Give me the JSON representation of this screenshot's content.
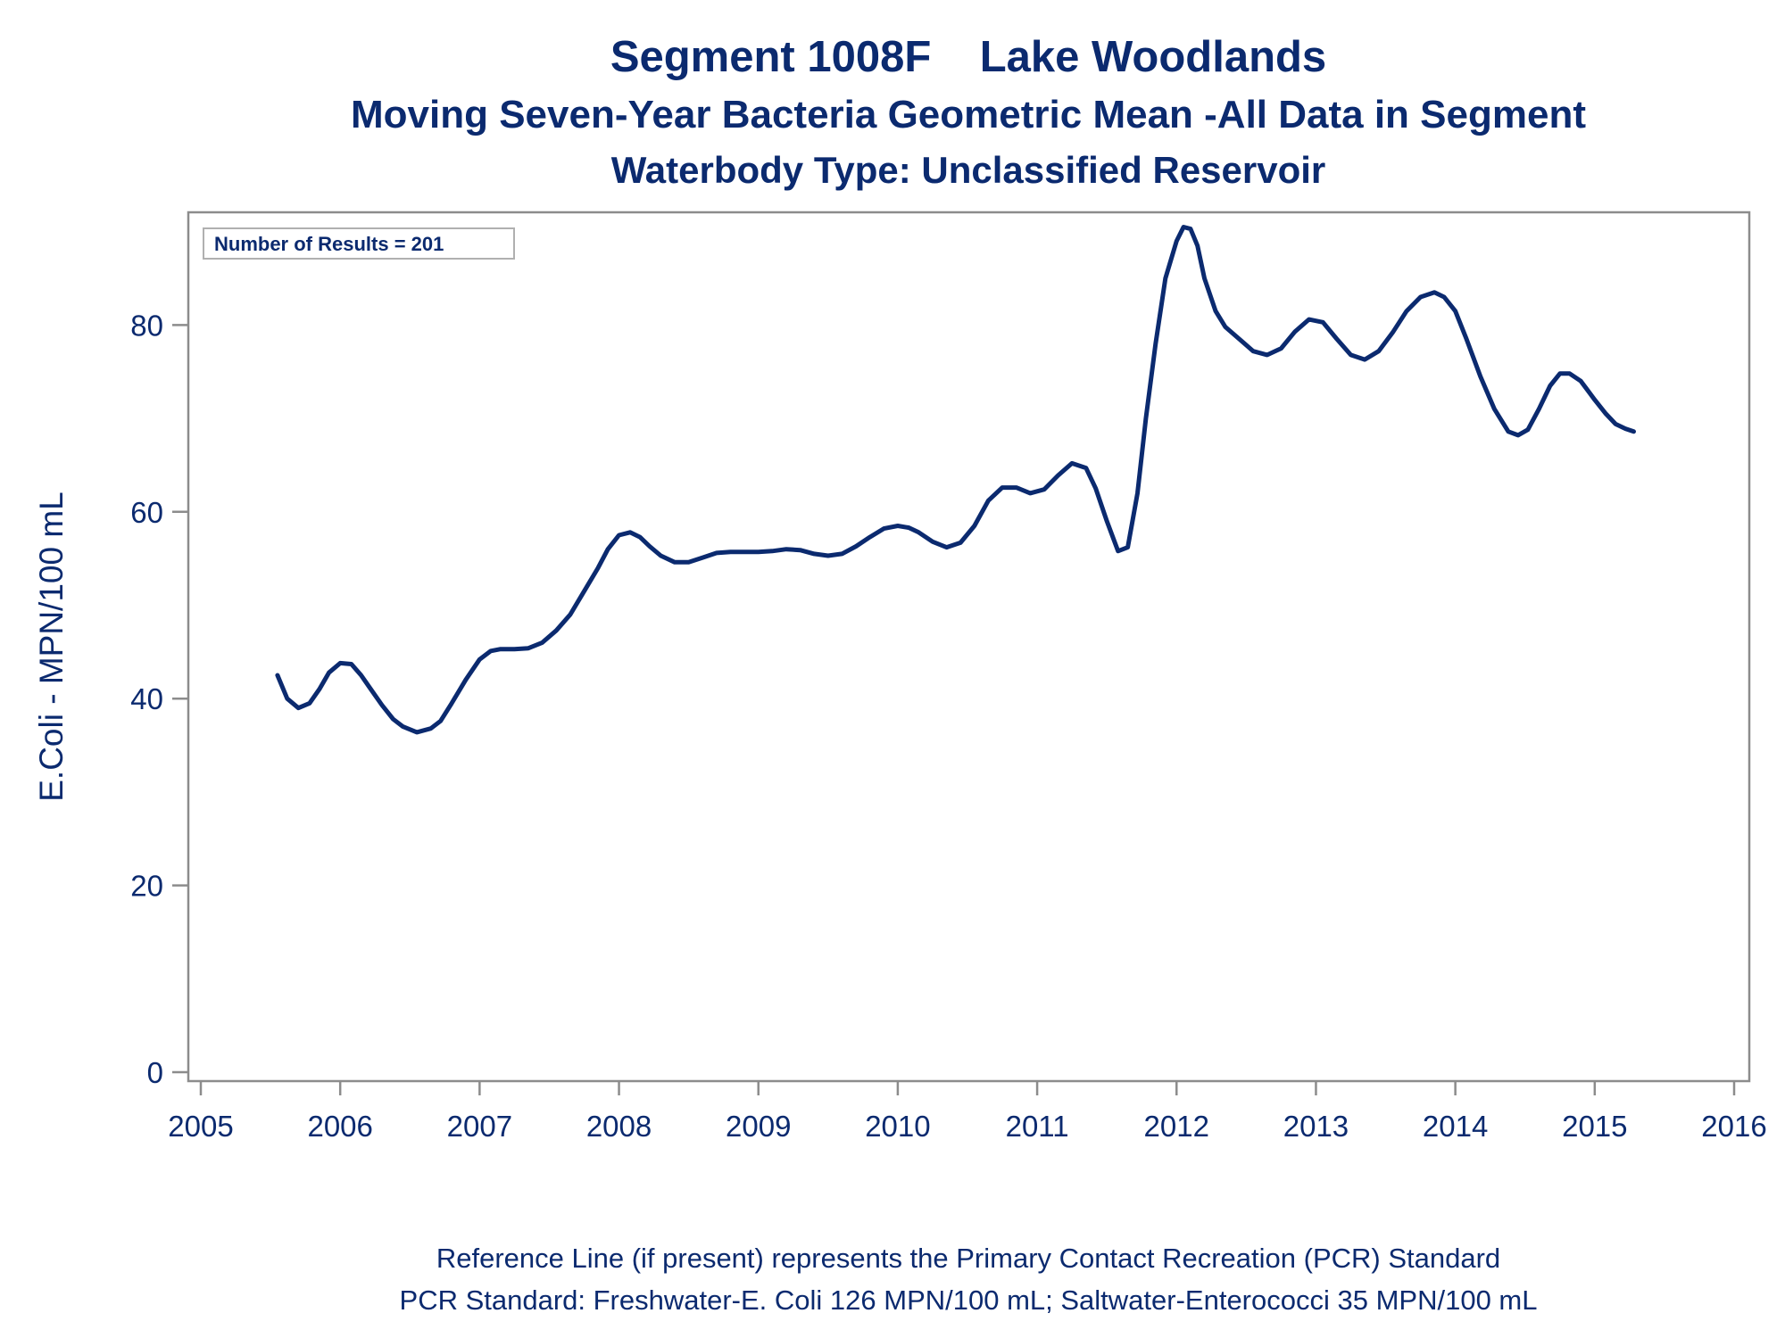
{
  "title": "Segment 1008F    Lake Woodlands",
  "subtitle": "Moving Seven-Year Bacteria Geometric Mean -All Data in Segment",
  "subtitle2": "Waterbody Type: Unclassified Reservoir",
  "inset_label": "Number of Results = 201",
  "footnotes": [
    "Reference Line (if present) represents the Primary Contact Recreation (PCR) Standard",
    "PCR Standard: Freshwater-E. Coli 126 MPN/100 mL; Saltwater-Enterococci 35 MPN/100 mL"
  ],
  "colors": {
    "line": "#0b2a6f",
    "text": "#0b2a6f",
    "axis": "#8c8c8c",
    "inset_border": "#b0b0b0"
  },
  "chart_data": {
    "type": "line",
    "title": "Segment 1008F    Lake Woodlands",
    "xlabel": "",
    "ylabel": "E.Coli - MPN/100 mL",
    "xlim": [
      2005,
      2016
    ],
    "ylim": [
      0,
      92
    ],
    "xticks": [
      2005,
      2006,
      2007,
      2008,
      2009,
      2010,
      2011,
      2012,
      2013,
      2014,
      2015,
      2016
    ],
    "yticks": [
      0,
      20,
      40,
      60,
      80
    ],
    "grid": false,
    "series": [
      {
        "x": [
          2005.55,
          2005.62,
          2005.7,
          2005.78,
          2005.85,
          2005.92,
          2006.0,
          2006.08,
          2006.15,
          2006.22,
          2006.3,
          2006.38,
          2006.45,
          2006.55,
          2006.65,
          2006.72,
          2006.8,
          2006.9,
          2007.0,
          2007.08,
          2007.15,
          2007.25,
          2007.35,
          2007.45,
          2007.55,
          2007.65,
          2007.75,
          2007.85,
          2007.92,
          2008.0,
          2008.08,
          2008.15,
          2008.22,
          2008.3,
          2008.4,
          2008.5,
          2008.6,
          2008.7,
          2008.8,
          2008.9,
          2009.0,
          2009.1,
          2009.2,
          2009.3,
          2009.4,
          2009.5,
          2009.6,
          2009.7,
          2009.8,
          2009.9,
          2010.0,
          2010.08,
          2010.15,
          2010.25,
          2010.35,
          2010.45,
          2010.55,
          2010.65,
          2010.75,
          2010.85,
          2010.95,
          2011.05,
          2011.15,
          2011.25,
          2011.35,
          2011.42,
          2011.5,
          2011.58,
          2011.65,
          2011.72,
          2011.78,
          2011.85,
          2011.92,
          2012.0,
          2012.05,
          2012.1,
          2012.15,
          2012.2,
          2012.28,
          2012.35,
          2012.45,
          2012.55,
          2012.65,
          2012.75,
          2012.85,
          2012.95,
          2013.05,
          2013.15,
          2013.25,
          2013.35,
          2013.45,
          2013.55,
          2013.65,
          2013.75,
          2013.85,
          2013.92,
          2014.0,
          2014.08,
          2014.18,
          2014.28,
          2014.38,
          2014.45,
          2014.52,
          2014.6,
          2014.68,
          2014.75,
          2014.82,
          2014.9,
          2015.0,
          2015.08,
          2015.15,
          2015.22,
          2015.28
        ],
        "y": [
          42.5,
          40.0,
          39.0,
          39.5,
          41.0,
          42.8,
          43.8,
          43.7,
          42.5,
          41.0,
          39.3,
          37.8,
          37.0,
          36.4,
          36.8,
          37.6,
          39.5,
          42.0,
          44.2,
          45.1,
          45.3,
          45.3,
          45.4,
          46.0,
          47.3,
          49.0,
          51.5,
          54.0,
          56.0,
          57.5,
          57.8,
          57.3,
          56.3,
          55.3,
          54.6,
          54.6,
          55.1,
          55.6,
          55.7,
          55.7,
          55.7,
          55.8,
          56.0,
          55.9,
          55.5,
          55.3,
          55.5,
          56.3,
          57.3,
          58.2,
          58.5,
          58.3,
          57.8,
          56.8,
          56.2,
          56.7,
          58.5,
          61.2,
          62.6,
          62.6,
          62.0,
          62.4,
          63.9,
          65.2,
          64.7,
          62.5,
          59.0,
          55.8,
          56.2,
          62.0,
          70.0,
          78.0,
          85.0,
          89.0,
          90.5,
          90.3,
          88.5,
          85.0,
          81.5,
          79.8,
          78.5,
          77.2,
          76.8,
          77.5,
          79.3,
          80.6,
          80.3,
          78.5,
          76.8,
          76.3,
          77.2,
          79.2,
          81.5,
          83.0,
          83.5,
          83.0,
          81.5,
          78.5,
          74.5,
          71.0,
          68.6,
          68.2,
          68.8,
          71.0,
          73.5,
          74.8,
          74.8,
          74.0,
          72.0,
          70.5,
          69.4,
          68.9,
          68.6
        ]
      }
    ]
  }
}
